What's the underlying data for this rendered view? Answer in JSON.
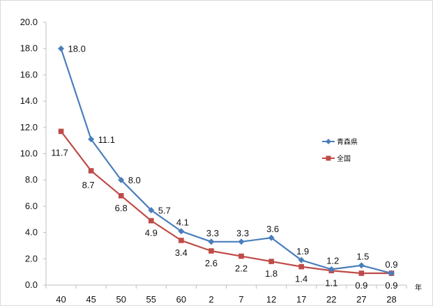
{
  "chart_data": {
    "type": "line",
    "categories": [
      "40",
      "45",
      "50",
      "55",
      "60",
      "2",
      "7",
      "12",
      "17",
      "22",
      "27",
      "28"
    ],
    "x_unit": "年",
    "ylim": [
      0,
      20
    ],
    "yticks": [
      "0.0",
      "2.0",
      "4.0",
      "6.0",
      "8.0",
      "10.0",
      "12.0",
      "14.0",
      "16.0",
      "18.0",
      "20.0"
    ],
    "grid": false,
    "legend_position": "right",
    "series": [
      {
        "name": "青森県",
        "color": "#4a7ebb",
        "marker": "diamond",
        "values": [
          18.0,
          11.1,
          8.0,
          5.7,
          4.1,
          3.3,
          3.3,
          3.6,
          1.9,
          1.2,
          1.5,
          0.9
        ],
        "labels": [
          "18.0",
          "11.1",
          "8.0",
          "5.7",
          "4.1",
          "3.3",
          "3.3",
          "3.6",
          "1.9",
          "1.2",
          "1.5",
          "0.9"
        ]
      },
      {
        "name": "全国",
        "color": "#be4b48",
        "marker": "square",
        "values": [
          11.7,
          8.7,
          6.8,
          4.9,
          3.4,
          2.6,
          2.2,
          1.8,
          1.4,
          1.1,
          0.9,
          0.9
        ],
        "labels": [
          "11.7",
          "8.7",
          "6.8",
          "4.9",
          "3.4",
          "2.6",
          "2.2",
          "1.8",
          "1.4",
          "1.1",
          "0.9",
          "0.9"
        ]
      }
    ]
  }
}
